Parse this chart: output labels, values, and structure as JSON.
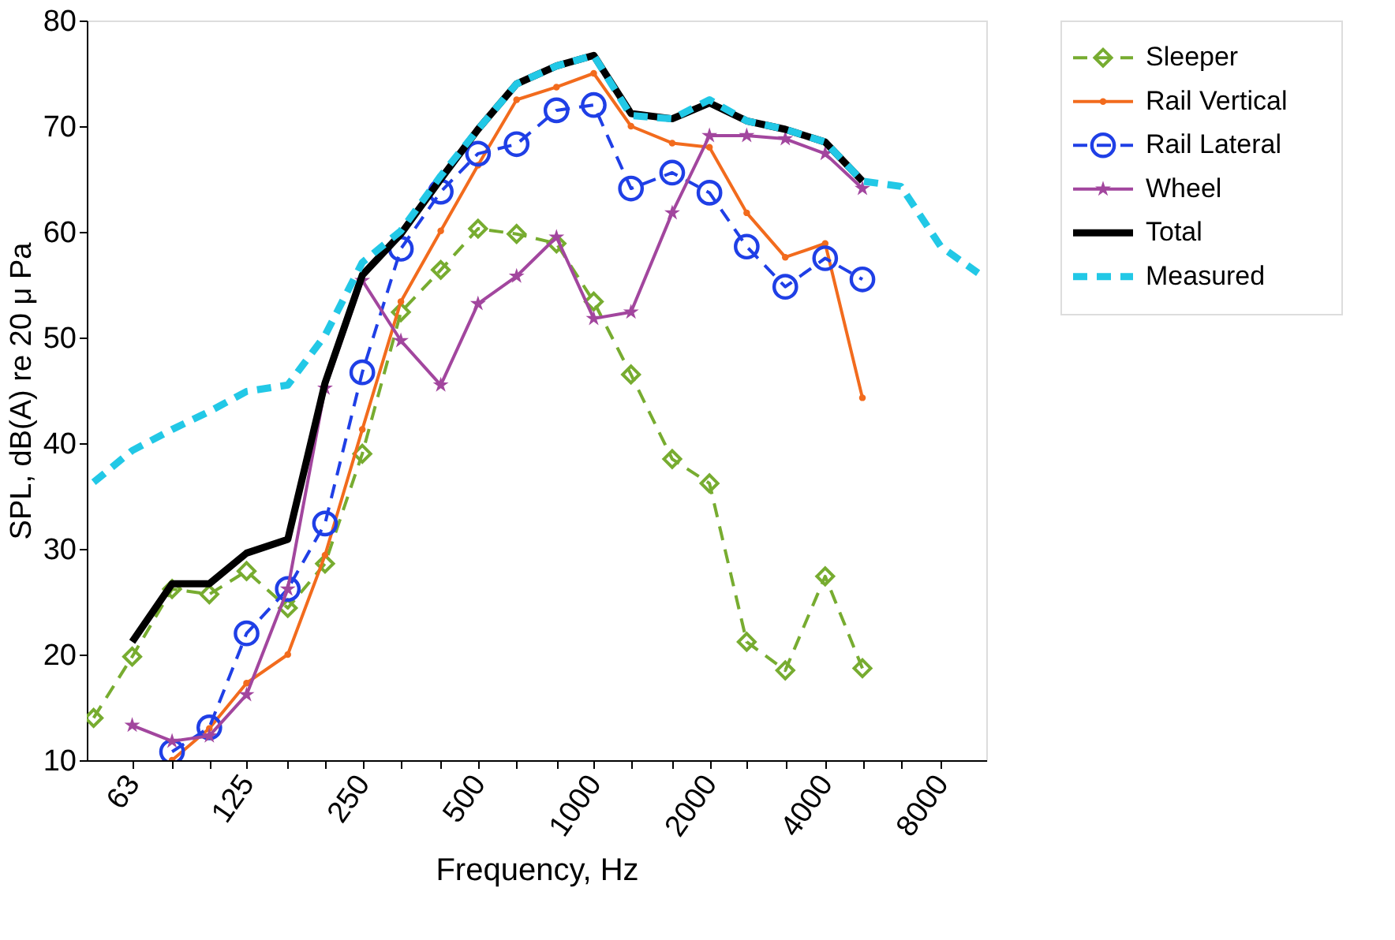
{
  "chart_data": {
    "type": "line",
    "xlabel": "Frequency, Hz",
    "ylabel": "SPL, dB(A) re 20 μ Pa",
    "x": [
      50,
      63,
      80,
      100,
      125,
      160,
      200,
      250,
      315,
      400,
      500,
      630,
      800,
      1000,
      1250,
      1600,
      2000,
      2500,
      3150,
      4000,
      5000,
      6300,
      8000,
      10000
    ],
    "log": "x",
    "xlim": [
      48,
      10500
    ],
    "xticks": [
      63,
      {
        "value": 80,
        "label": null
      },
      {
        "value": 100,
        "label": null
      },
      125,
      {
        "value": 160,
        "label": null
      },
      {
        "value": 200,
        "label": null
      },
      250,
      {
        "value": 315,
        "label": null
      },
      {
        "value": 400,
        "label": null
      },
      500,
      {
        "value": 630,
        "label": null
      },
      {
        "value": 800,
        "label": null
      },
      1000,
      {
        "value": 1250,
        "label": null
      },
      {
        "value": 1600,
        "label": null
      },
      2000,
      {
        "value": 2500,
        "label": null
      },
      {
        "value": 3150,
        "label": null
      },
      4000,
      {
        "value": 5000,
        "label": null
      },
      {
        "value": 6300,
        "label": null
      },
      8000
    ],
    "ylim": [
      10,
      80
    ],
    "yticks": [
      10,
      20,
      30,
      40,
      50,
      60,
      70,
      80
    ],
    "grid": false,
    "legend": "right",
    "series": [
      {
        "name": "Sleeper",
        "color": "#77ac30",
        "marker": "diamond",
        "line_style": "dashed",
        "values": [
          14.0,
          19.8,
          26.2,
          25.7,
          27.9,
          24.4,
          28.6,
          39.0,
          52.4,
          56.4,
          60.3,
          59.8,
          58.9,
          53.4,
          46.5,
          38.5,
          36.2,
          21.2,
          18.5,
          27.4,
          18.7,
          null,
          null,
          null
        ]
      },
      {
        "name": "Rail Vertical",
        "color": "#f26b1d",
        "marker": "point",
        "line_style": "solid",
        "values": [
          null,
          null,
          10.0,
          13.0,
          17.3,
          20.0,
          29.4,
          41.3,
          53.4,
          60.1,
          66.3,
          72.5,
          73.7,
          75.0,
          70.0,
          68.4,
          68.0,
          61.8,
          57.6,
          58.9,
          44.3,
          null,
          null,
          null
        ]
      },
      {
        "name": "Rail Lateral",
        "color": "#1f3fe6",
        "marker": "circle",
        "line_style": "dashed",
        "values": [
          null,
          null,
          10.8,
          13.1,
          22.0,
          26.2,
          32.4,
          46.7,
          58.4,
          63.8,
          67.4,
          68.3,
          71.5,
          72.0,
          64.1,
          65.6,
          63.7,
          58.6,
          54.8,
          57.5,
          55.5,
          null,
          null,
          null
        ]
      },
      {
        "name": "Wheel",
        "color": "#a2469e",
        "marker": "star",
        "line_style": "solid",
        "values": [
          null,
          13.3,
          11.8,
          12.3,
          16.2,
          26.2,
          45.2,
          55.4,
          49.7,
          45.5,
          53.2,
          55.8,
          59.5,
          51.8,
          52.4,
          61.8,
          69.1,
          69.1,
          68.8,
          67.4,
          64.1,
          null,
          null,
          null
        ]
      },
      {
        "name": "Total",
        "color": "#000000",
        "marker": "none",
        "line_style": "solid",
        "values": [
          null,
          21.2,
          26.7,
          26.7,
          29.6,
          30.9,
          45.7,
          55.9,
          59.8,
          65.0,
          69.7,
          74.0,
          75.7,
          76.7,
          71.2,
          70.7,
          72.2,
          70.5,
          69.7,
          68.5,
          64.8,
          null,
          null,
          null
        ]
      },
      {
        "name": "Measured",
        "color": "#22c8e6",
        "marker": "none",
        "line_style": "dashed",
        "values": [
          36.3,
          39.3,
          41.3,
          43.0,
          44.9,
          45.5,
          50.2,
          57.1,
          60.1,
          65.3,
          69.7,
          74.0,
          75.7,
          76.7,
          71.0,
          70.7,
          72.5,
          70.5,
          69.7,
          68.5,
          64.8,
          64.3,
          58.6,
          56.1
        ]
      }
    ]
  }
}
